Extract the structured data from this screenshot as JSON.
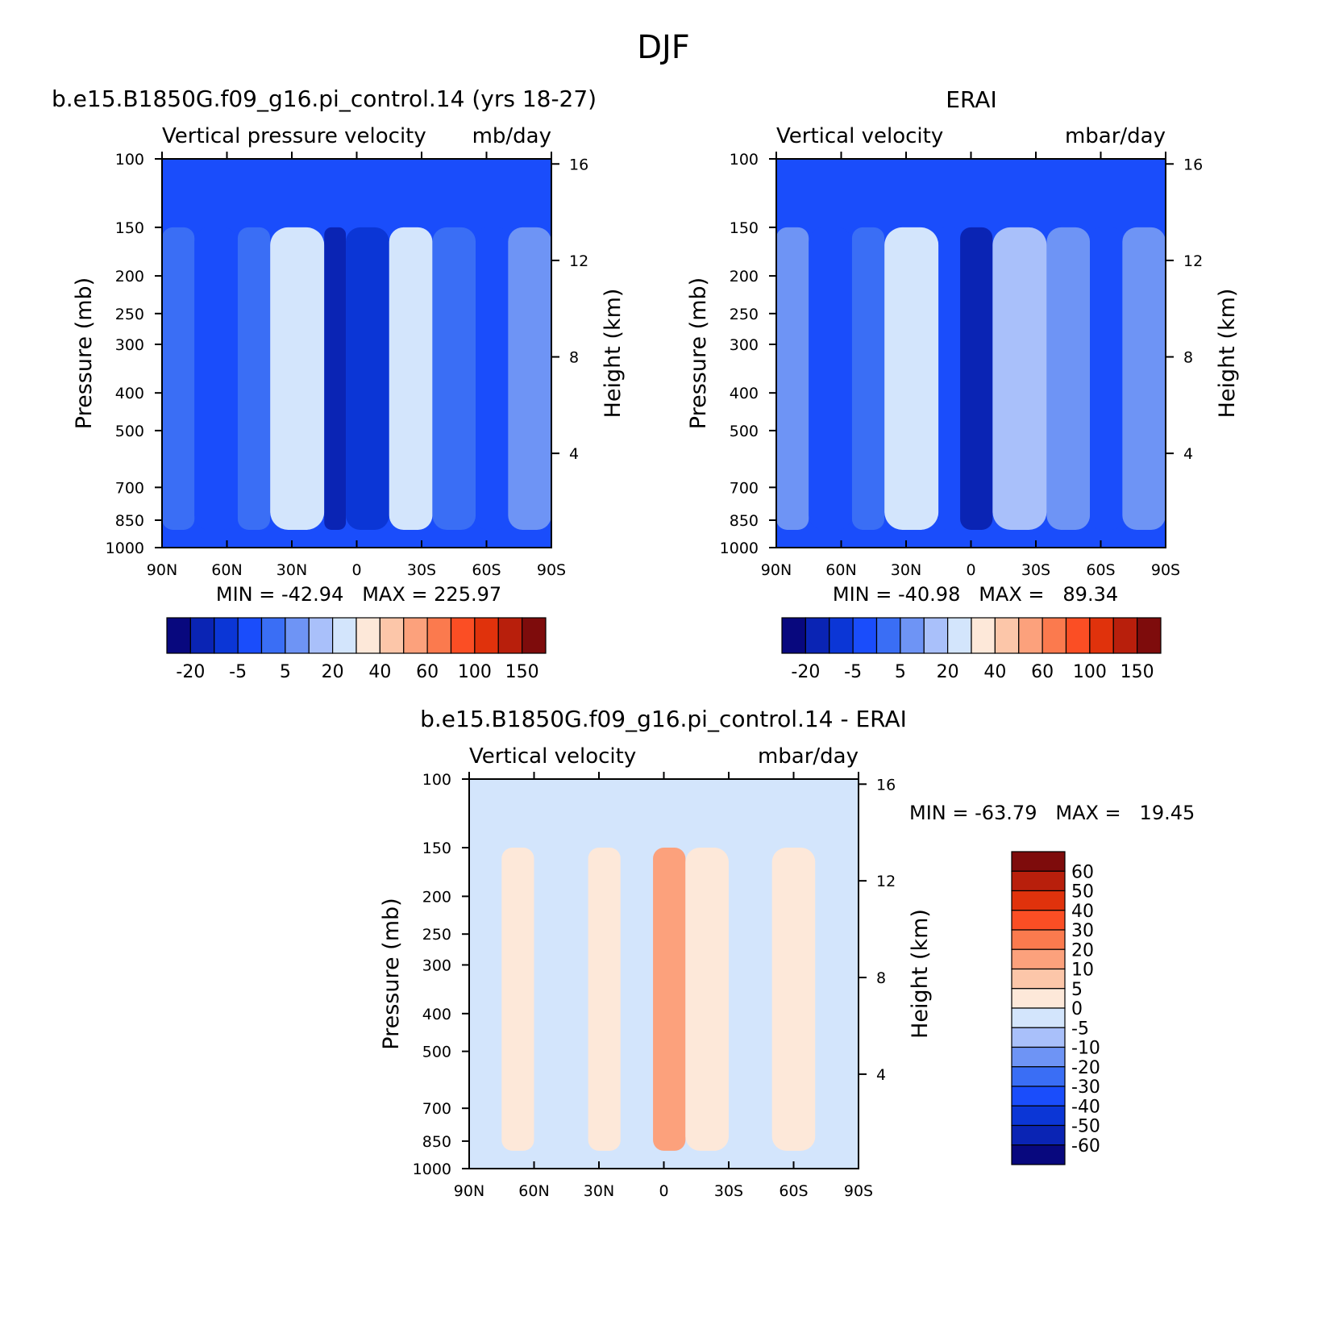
{
  "figure_title": "DJF",
  "colors": {
    "model_palette": [
      "#08087e",
      "#0a24b4",
      "#0b36d6",
      "#1a4dfb",
      "#3a6ef5",
      "#6e94f5",
      "#a9c0fa",
      "#d3e5fc",
      "#fde8d9",
      "#fcc6a9",
      "#fca17c",
      "#fb7a4e",
      "#fb4e24",
      "#e0320c",
      "#b81f0c",
      "#7e0c0c"
    ],
    "diff_palette": [
      "#08087e",
      "#0a24b4",
      "#0b36d6",
      "#1a4dfb",
      "#3a6ef5",
      "#6e94f5",
      "#a9c0fa",
      "#d3e5fc",
      "#fde8d9",
      "#fcc6a9",
      "#fca17c",
      "#fb7a4e",
      "#fb4e24",
      "#e0320c",
      "#b81f0c",
      "#7e0c0c"
    ]
  },
  "panels": {
    "model": {
      "left_title": "b.e15.B1850G.f09_g16.pi_control.14 (yrs 18-27)",
      "sub_left": "Vertical pressure velocity",
      "sub_right": "mb/day",
      "y_label": "Pressure (mb)",
      "y2_label": "Height (km)",
      "min_max": "MIN = -42.94   MAX = 225.97",
      "colorbar_labels": [
        "-20",
        "-5",
        "5",
        "20",
        "40",
        "60",
        "100",
        "150"
      ]
    },
    "obs": {
      "center_title": "ERAI",
      "sub_left": "Vertical velocity",
      "sub_right": "mbar/day",
      "y_label": "Pressure (mb)",
      "y2_label": "Height (km)",
      "min_max": "MIN = -40.98   MAX =   89.34",
      "colorbar_labels": [
        "-20",
        "-5",
        "5",
        "20",
        "40",
        "60",
        "100",
        "150"
      ]
    },
    "diff": {
      "center_title": "b.e15.B1850G.f09_g16.pi_control.14 - ERAI",
      "sub_left": "Vertical velocity",
      "sub_right": "mbar/day",
      "y_label": "Pressure (mb)",
      "y2_label": "Height (km)",
      "min_max": "MIN = -63.79   MAX =   19.45",
      "colorbar_labels": [
        "60",
        "50",
        "40",
        "30",
        "20",
        "10",
        "5",
        "0",
        "-5",
        "-10",
        "-20",
        "-30",
        "-40",
        "-50",
        "-60"
      ]
    }
  },
  "chart_data": [
    {
      "type": "heatmap",
      "title": "b.e15.B1850G.f09_g16.pi_control.14 (yrs 18-27)",
      "subtitle": "Vertical pressure velocity",
      "units": "mb/day",
      "xlabel": "",
      "ylabel": "Pressure (mb)",
      "y2label": "Height (km)",
      "x_ticks": [
        "90N",
        "60N",
        "30N",
        "0",
        "30S",
        "60S",
        "90S"
      ],
      "y_ticks": [
        100,
        150,
        200,
        250,
        300,
        400,
        500,
        700,
        850,
        1000
      ],
      "y2_ticks": [
        4,
        8,
        12,
        16
      ],
      "ylim": [
        1000,
        100
      ],
      "y_scale": "log",
      "min": -42.94,
      "max": 225.97,
      "contour_levels": [
        -20,
        -15,
        -10,
        -5,
        0,
        5,
        10,
        20,
        30,
        40,
        50,
        60,
        80,
        100,
        125,
        150
      ],
      "band_values_at_500mb": [
        {
          "lat": "90N-75N",
          "value": -5
        },
        {
          "lat": "75N-55N",
          "value": -10
        },
        {
          "lat": "55N-40N",
          "value": -5
        },
        {
          "lat": "40N-15N",
          "value": 15
        },
        {
          "lat": "15N-5N",
          "value": -20
        },
        {
          "lat": "5N-15S",
          "value": -15
        },
        {
          "lat": "15S-35S",
          "value": 10
        },
        {
          "lat": "35S-55S",
          "value": -5
        },
        {
          "lat": "55S-70S",
          "value": -10
        },
        {
          "lat": "70S-90S",
          "value": 0
        }
      ]
    },
    {
      "type": "heatmap",
      "title": "ERAI",
      "subtitle": "Vertical velocity",
      "units": "mbar/day",
      "xlabel": "",
      "ylabel": "Pressure (mb)",
      "y2label": "Height (km)",
      "x_ticks": [
        "90N",
        "60N",
        "30N",
        "0",
        "30S",
        "60S",
        "90S"
      ],
      "y_ticks": [
        100,
        150,
        200,
        250,
        300,
        400,
        500,
        700,
        850,
        1000
      ],
      "y2_ticks": [
        4,
        8,
        12,
        16
      ],
      "ylim": [
        1000,
        100
      ],
      "y_scale": "log",
      "min": -40.98,
      "max": 89.34,
      "contour_levels": [
        -20,
        -15,
        -10,
        -5,
        0,
        5,
        10,
        20,
        30,
        40,
        50,
        60,
        80,
        100,
        125,
        150
      ],
      "band_values_at_500mb": [
        {
          "lat": "90N-75N",
          "value": 0
        },
        {
          "lat": "75N-55N",
          "value": -10
        },
        {
          "lat": "55N-40N",
          "value": -5
        },
        {
          "lat": "40N-15N",
          "value": 15
        },
        {
          "lat": "15N-5N",
          "value": -10
        },
        {
          "lat": "5N-10S",
          "value": -20
        },
        {
          "lat": "10S-35S",
          "value": 5
        },
        {
          "lat": "35S-55S",
          "value": 0
        },
        {
          "lat": "55S-70S",
          "value": -10
        },
        {
          "lat": "70S-90S",
          "value": 0
        }
      ]
    },
    {
      "type": "heatmap",
      "title": "b.e15.B1850G.f09_g16.pi_control.14 - ERAI",
      "subtitle": "Vertical velocity",
      "units": "mbar/day",
      "xlabel": "",
      "ylabel": "Pressure (mb)",
      "y2label": "Height (km)",
      "x_ticks": [
        "90N",
        "60N",
        "30N",
        "0",
        "30S",
        "60S",
        "90S"
      ],
      "y_ticks": [
        100,
        150,
        200,
        250,
        300,
        400,
        500,
        700,
        850,
        1000
      ],
      "y2_ticks": [
        4,
        8,
        12,
        16
      ],
      "ylim": [
        1000,
        100
      ],
      "y_scale": "log",
      "min": -63.79,
      "max": 19.45,
      "contour_levels": [
        -60,
        -50,
        -40,
        -30,
        -20,
        -10,
        -5,
        0,
        5,
        10,
        20,
        30,
        40,
        50,
        60
      ],
      "band_values_at_500mb": [
        {
          "lat": "90N-75N",
          "value": -2
        },
        {
          "lat": "75N-60N",
          "value": 2
        },
        {
          "lat": "60N-35N",
          "value": -2
        },
        {
          "lat": "35N-20N",
          "value": 2
        },
        {
          "lat": "20N-5N",
          "value": -5
        },
        {
          "lat": "5N-10S",
          "value": 10
        },
        {
          "lat": "10S-30S",
          "value": 2
        },
        {
          "lat": "30S-50S",
          "value": -2
        },
        {
          "lat": "50S-70S",
          "value": 2
        },
        {
          "lat": "70S-90S",
          "value": -2
        }
      ]
    }
  ]
}
